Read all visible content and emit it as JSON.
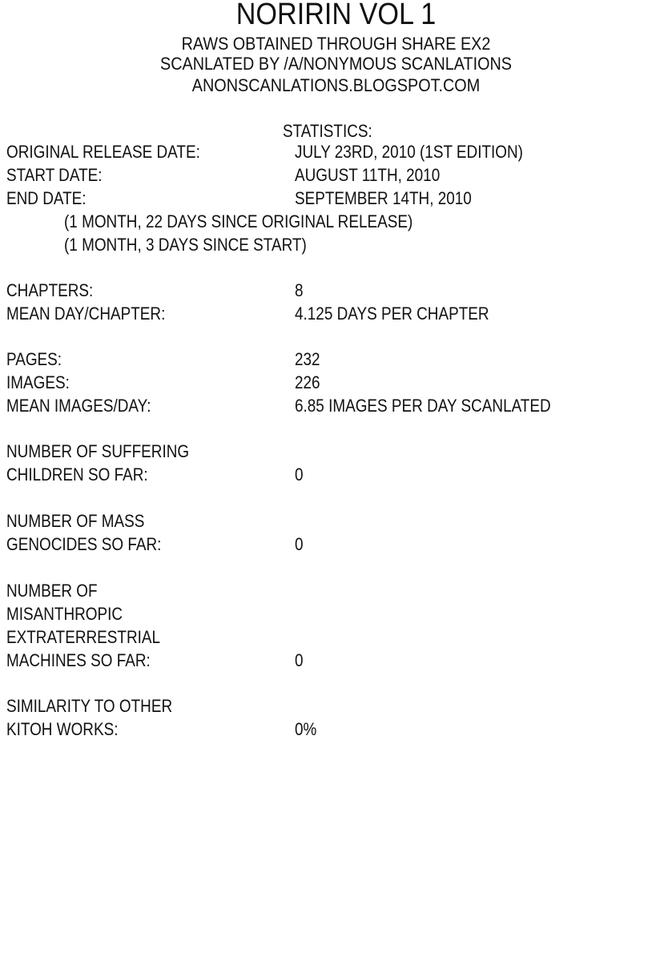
{
  "header": {
    "title": "Noririn Vol 1",
    "lines": [
      "Raws obtained through Share EX2",
      "Scanlated by /a/nonymous Scanlations",
      "anonscanlations.blogspot.com"
    ]
  },
  "stats": {
    "heading": "Statistics:",
    "original_release_label": "Original release date:",
    "original_release_value": "July 23rd, 2010 (1st edition)",
    "start_label": "Start date:",
    "start_value": "August 11th, 2010",
    "end_label": "End date:",
    "end_value": "September 14th, 2010",
    "note_1": "(1 month, 22 days since original release)",
    "note_2": "(1 month, 3 days since start)",
    "chapters_label": "Chapters:",
    "chapters_value": "8",
    "mean_day_label": "Mean day/chapter:",
    "mean_day_value": "4.125 days per chapter",
    "pages_label": "Pages:",
    "pages_value": "232",
    "images_label": "Images:",
    "images_value": "226",
    "mean_images_label": "Mean images/day:",
    "mean_images_value": "6.85 images per day scanlated",
    "suffering_label_1": "Number of suffering",
    "suffering_label_2": "children so far:",
    "suffering_value": "0",
    "genocides_label_1": "Number of mass",
    "genocides_label_2": "genocides so far:",
    "genocides_value": "0",
    "machines_label_1": "Number of",
    "machines_label_2": "misanthropic",
    "machines_label_3": "extraterrestrial",
    "machines_label_4": "machines so far:",
    "machines_value": "0",
    "similarity_label_1": "Similarity to other",
    "similarity_label_2": "Kitoh works:",
    "similarity_value": "0%"
  }
}
